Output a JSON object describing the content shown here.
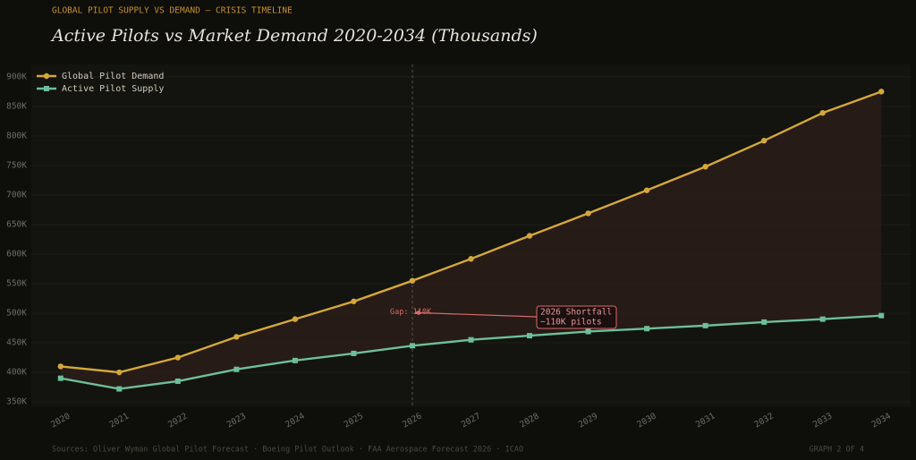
{
  "chart_data": {
    "type": "line",
    "kicker": "GLOBAL PILOT SUPPLY VS DEMAND — CRISIS TIMELINE",
    "title": "Active Pilots vs Market Demand  2020-2034  (Thousands)",
    "categories": [
      "2020",
      "2021",
      "2022",
      "2023",
      "2024",
      "2025",
      "2026",
      "2027",
      "2028",
      "2029",
      "2030",
      "2031",
      "2032",
      "2033",
      "2034"
    ],
    "series": [
      {
        "name": "Global Pilot Demand",
        "color": "#d4a838",
        "marker": "circle",
        "values": [
          410,
          400,
          425,
          460,
          490,
          520,
          555,
          592,
          631,
          669,
          708,
          748,
          792,
          839,
          875
        ]
      },
      {
        "name": "Active Pilot Supply",
        "color": "#6dbf9a",
        "marker": "square",
        "values": [
          390,
          372,
          385,
          405,
          420,
          432,
          445,
          455,
          462,
          469,
          474,
          479,
          485,
          490,
          496
        ]
      }
    ],
    "gap_fill": "#2a1d18",
    "highlight_category": 6,
    "ylim": [
      341,
      921
    ],
    "yticks": [
      {
        "value": 350,
        "label": "350K"
      },
      {
        "value": 400,
        "label": "400K"
      },
      {
        "value": 450,
        "label": "450K"
      },
      {
        "value": 500,
        "label": "500K"
      },
      {
        "value": 550,
        "label": "550K"
      },
      {
        "value": 600,
        "label": "600K"
      },
      {
        "value": 650,
        "label": "650K"
      },
      {
        "value": 700,
        "label": "700K"
      },
      {
        "value": 750,
        "label": "750K"
      },
      {
        "value": 800,
        "label": "800K"
      },
      {
        "value": 850,
        "label": "850K"
      },
      {
        "value": 900,
        "label": "900K"
      }
    ],
    "grid": true,
    "legend": "top-left",
    "annotations": [
      {
        "text": "Gap: 110K",
        "value": 501
      },
      {
        "lines": [
          "2026 Shortfall",
          "~110K pilots"
        ]
      }
    ],
    "source": "Sources: Oliver Wyman Global Pilot Forecast · Boeing Pilot Outlook · FAA Aerospace Forecast 2026 · ICAO",
    "page_label": "GRAPH 2 OF 4"
  }
}
